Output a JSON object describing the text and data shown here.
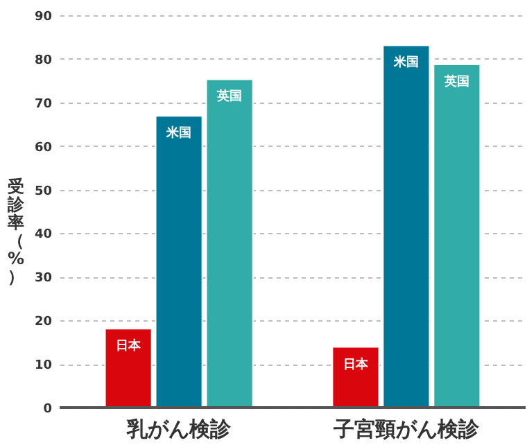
{
  "chart_data": {
    "type": "bar",
    "ylabel": "受診率（%）",
    "categories": [
      "乳がん検診",
      "子宮頸がん検診"
    ],
    "series": [
      {
        "name": "日本",
        "color": "#d9070d",
        "values": [
          18.1,
          13.9
        ]
      },
      {
        "name": "米国",
        "color": "#007797",
        "values": [
          66.9,
          83.1
        ]
      },
      {
        "name": "英国",
        "color": "#32aca9",
        "values": [
          75.3,
          78.7
        ]
      }
    ],
    "ylim": [
      0,
      90
    ],
    "yticks": [
      0,
      10,
      20,
      30,
      40,
      50,
      60,
      70,
      80,
      90
    ],
    "grid": "y",
    "line_style": "dashed"
  }
}
